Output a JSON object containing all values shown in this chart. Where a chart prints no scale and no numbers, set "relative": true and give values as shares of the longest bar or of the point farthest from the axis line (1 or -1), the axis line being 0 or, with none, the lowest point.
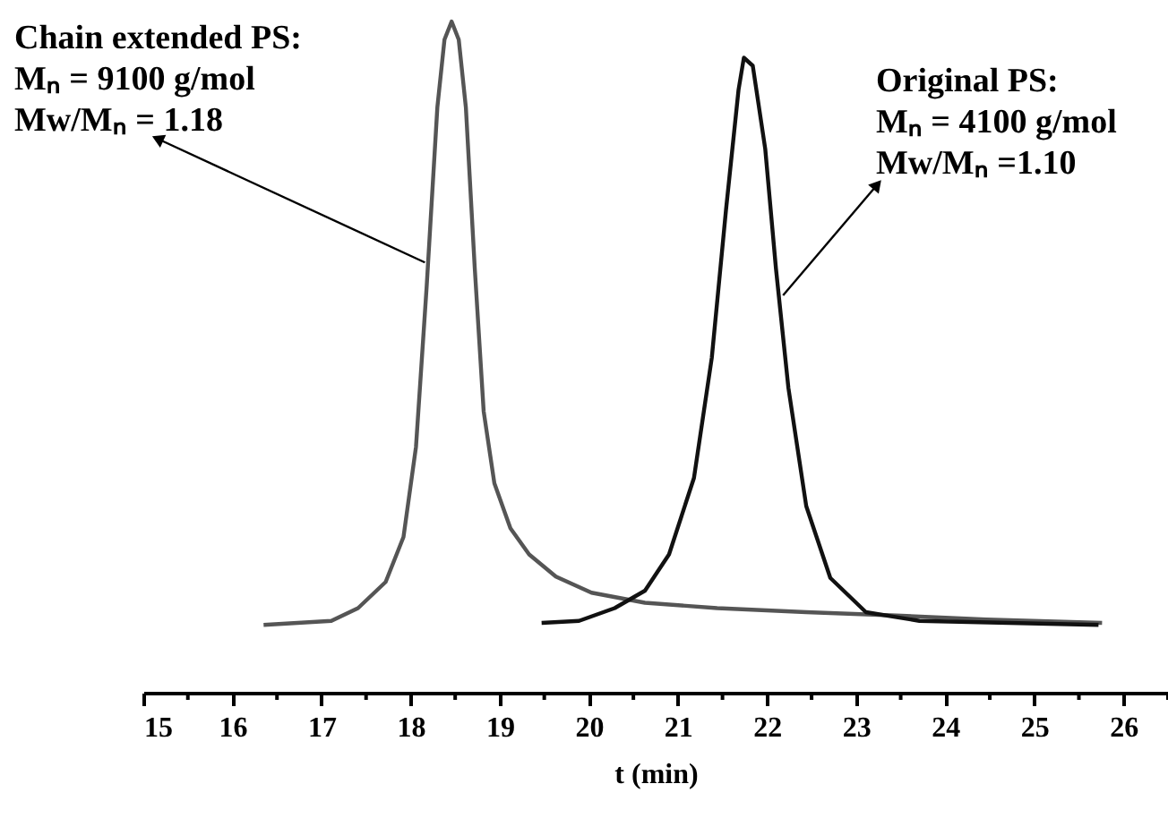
{
  "chart_data": {
    "type": "line",
    "relative": true,
    "xlabel": "t (min)",
    "xlim": [
      15,
      26.5
    ],
    "xticks": [
      15,
      {
        "value": 15.5,
        "label": null
      },
      16,
      {
        "value": 16.5,
        "label": null
      },
      17,
      {
        "value": 17.5,
        "label": null
      },
      18,
      {
        "value": 18.5,
        "label": null
      },
      19,
      {
        "value": 19.5,
        "label": null
      },
      20,
      {
        "value": 20.5,
        "label": null
      },
      21,
      {
        "value": 21.5,
        "label": null
      },
      22,
      {
        "value": 22.5,
        "label": null
      },
      23,
      {
        "value": 23.5,
        "label": null
      },
      24,
      {
        "value": 24.5,
        "label": null
      },
      25,
      {
        "value": 25.5,
        "label": null
      },
      26,
      {
        "value": 26.5,
        "label": null
      }
    ],
    "tick_labels": "x",
    "grid": false,
    "marker": "none",
    "line_style": "solid",
    "series": [
      {
        "color": "#555555",
        "x": [
          16.35,
          17.11,
          17.41,
          17.72,
          17.92,
          18.06,
          18.18,
          18.3,
          18.38,
          18.46,
          18.54,
          18.62,
          18.72,
          18.82,
          18.94,
          19.12,
          19.33,
          19.63,
          20.03,
          20.63,
          21.44,
          22.44,
          23.45,
          24.46,
          25.76
        ],
        "values": [
          0.101,
          0.107,
          0.126,
          0.165,
          0.232,
          0.366,
          0.605,
          0.872,
          0.973,
          1,
          0.973,
          0.872,
          0.632,
          0.419,
          0.312,
          0.245,
          0.206,
          0.173,
          0.149,
          0.134,
          0.126,
          0.12,
          0.115,
          0.109,
          0.104
        ]
      },
      {
        "color": "#111111",
        "x": [
          19.47,
          19.89,
          20.29,
          20.63,
          20.9,
          21.18,
          21.38,
          21.54,
          21.68,
          21.74,
          21.84,
          21.98,
          22.1,
          22.24,
          22.44,
          22.71,
          23.11,
          23.71,
          25.72
        ],
        "values": [
          0.104,
          0.107,
          0.126,
          0.152,
          0.206,
          0.32,
          0.499,
          0.72,
          0.898,
          0.946,
          0.934,
          0.81,
          0.632,
          0.454,
          0.278,
          0.171,
          0.12,
          0.107,
          0.101
        ]
      }
    ],
    "annotations": [
      {
        "text": "Chain extended PS:\nMₙ = 9100 g/mol\nMw/Mₙ = 1.18",
        "x": 18.16,
        "y": 0.641
      },
      {
        "text": "Original PS:\nMₙ = 4100 g/mol\nMw/Mₙ =1.10",
        "x": 22.18,
        "y": 0.592
      }
    ]
  }
}
